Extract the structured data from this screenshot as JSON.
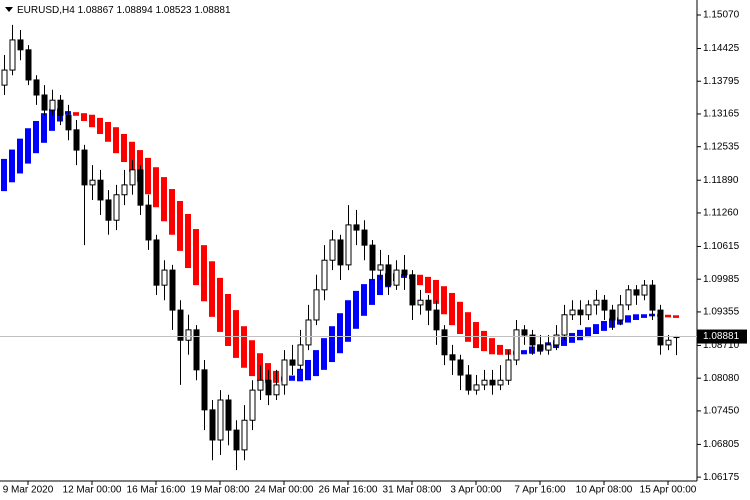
{
  "chart_data": {
    "type": "candlestick",
    "symbol": "EURUSD,H4",
    "ylim": [
      1.0612,
      1.1532
    ],
    "yticks": [
      {
        "value": 1.1507,
        "label": "1.15070"
      },
      1.14425,
      1.13795,
      1.13165,
      1.12535,
      {
        "value": 1.1189,
        "label": "1.11890"
      },
      {
        "value": 1.1126,
        "label": "1.11260"
      },
      1.10615,
      1.09985,
      1.09355,
      {
        "value": 1.0871,
        "label": "1.08710"
      },
      {
        "value": 1.0808,
        "label": "1.08080"
      },
      {
        "value": 1.0745,
        "label": "1.07450"
      },
      1.06805,
      1.06175
    ],
    "categories": [
      null,
      null,
      null,
      "9 Mar 2020",
      null,
      null,
      null,
      null,
      null,
      null,
      null,
      "12 Mar 00:00",
      null,
      null,
      null,
      null,
      null,
      null,
      null,
      "16 Mar 16:00",
      null,
      null,
      null,
      null,
      null,
      null,
      null,
      "19 Mar 08:00",
      null,
      null,
      null,
      null,
      null,
      null,
      null,
      "24 Mar 00:00",
      null,
      null,
      null,
      null,
      null,
      null,
      null,
      "26 Mar 16:00",
      null,
      null,
      null,
      null,
      null,
      null,
      null,
      "31 Mar 08:00",
      null,
      null,
      null,
      null,
      null,
      null,
      null,
      "3 Apr 00:00",
      null,
      null,
      null,
      null,
      null,
      null,
      null,
      "7 Apr 16:00",
      null,
      null,
      null,
      null,
      null,
      null,
      null,
      "10 Apr 08:00",
      null,
      null,
      null,
      null,
      null,
      null,
      null,
      "15 Apr 00:00",
      null
    ],
    "candles": [
      [
        1.1372,
        1.143,
        1.1353,
        1.1401
      ],
      [
        1.1401,
        1.1488,
        1.1391,
        1.1459
      ],
      [
        1.1459,
        1.1478,
        1.142,
        1.144
      ],
      [
        1.144,
        1.1449,
        1.1372,
        1.1382
      ],
      [
        1.1382,
        1.1391,
        1.1334,
        1.1353
      ],
      [
        1.1353,
        1.1372,
        1.1314,
        1.1324
      ],
      [
        1.1324,
        1.1363,
        1.1314,
        1.1343
      ],
      [
        1.1343,
        1.1353,
        1.1295,
        1.1314
      ],
      [
        1.1314,
        1.1334,
        1.1266,
        1.1286
      ],
      [
        1.1286,
        1.1305,
        1.1218,
        1.1247
      ],
      [
        1.1247,
        1.1257,
        1.1064,
        1.118
      ],
      [
        1.118,
        1.1218,
        1.1151,
        1.1189
      ],
      [
        1.1189,
        1.1209,
        1.1122,
        1.1151
      ],
      [
        1.1151,
        1.117,
        1.1084,
        1.1112
      ],
      [
        1.1112,
        1.118,
        1.1093,
        1.1161
      ],
      [
        1.1161,
        1.1209,
        1.1141,
        1.118
      ],
      [
        1.118,
        1.1228,
        1.1161,
        1.1209
      ],
      [
        1.1209,
        1.1218,
        1.1122,
        1.1141
      ],
      [
        1.1141,
        1.1161,
        1.1055,
        1.1074
      ],
      [
        1.1074,
        1.1084,
        1.0968,
        1.0987
      ],
      [
        1.0987,
        1.1035,
        1.0958,
        1.1016
      ],
      [
        1.1016,
        1.1026,
        1.0901,
        1.0939
      ],
      [
        1.0939,
        1.0958,
        1.0795,
        1.0881
      ],
      [
        1.0881,
        1.093,
        1.0853,
        1.0901
      ],
      [
        1.0901,
        1.091,
        1.0804,
        1.0824
      ],
      [
        1.0824,
        1.0843,
        1.0708,
        1.0747
      ],
      [
        1.0747,
        1.0766,
        1.065,
        1.0689
      ],
      [
        1.0689,
        1.0785,
        1.066,
        1.0766
      ],
      [
        1.0766,
        1.0776,
        1.0679,
        1.0708
      ],
      [
        1.0708,
        1.0727,
        1.0631,
        1.067
      ],
      [
        1.067,
        1.0756,
        1.065,
        1.0727
      ],
      [
        1.0727,
        1.0804,
        1.0708,
        1.0785
      ],
      [
        1.0785,
        1.0833,
        1.0766,
        1.0804
      ],
      [
        1.0804,
        1.0824,
        1.0756,
        1.0776
      ],
      [
        1.0776,
        1.0824,
        1.0766,
        1.0795
      ],
      [
        1.0795,
        1.0862,
        1.0776,
        1.0843
      ],
      [
        1.0843,
        1.0872,
        1.0814,
        1.0833
      ],
      [
        1.0833,
        1.0901,
        1.0824,
        1.0872
      ],
      [
        1.0872,
        1.0949,
        1.0862,
        1.092
      ],
      [
        1.092,
        1.1007,
        1.091,
        1.0978
      ],
      [
        1.0978,
        1.1064,
        1.0958,
        1.1035
      ],
      [
        1.1035,
        1.1093,
        1.1016,
        1.1074
      ],
      [
        1.1074,
        1.1084,
        1.0997,
        1.1026
      ],
      [
        1.1026,
        1.1141,
        1.1016,
        1.1103
      ],
      [
        1.1103,
        1.1132,
        1.1064,
        1.1093
      ],
      [
        1.1093,
        1.1112,
        1.1035,
        1.1064
      ],
      [
        1.1064,
        1.1074,
        1.0997,
        1.1016
      ],
      [
        1.1016,
        1.1055,
        1.0997,
        1.1026
      ],
      [
        1.1026,
        1.1045,
        1.0968,
        1.0987
      ],
      [
        1.0987,
        1.1035,
        1.0978,
        1.1016
      ],
      [
        1.1016,
        1.1045,
        1.0978,
        1.1007
      ],
      [
        1.1007,
        1.1016,
        1.092,
        1.0949
      ],
      [
        1.0949,
        1.0978,
        1.093,
        1.0958
      ],
      [
        1.0958,
        1.0968,
        1.091,
        1.0939
      ],
      [
        1.0939,
        1.0958,
        1.0872,
        1.0901
      ],
      [
        1.0901,
        1.091,
        1.0833,
        1.0853
      ],
      [
        1.0853,
        1.0872,
        1.0814,
        1.0843
      ],
      [
        1.0843,
        1.0853,
        1.0785,
        1.0814
      ],
      [
        1.0814,
        1.0833,
        1.0776,
        1.0785
      ],
      [
        1.0785,
        1.0814,
        1.0776,
        1.0795
      ],
      [
        1.0795,
        1.0824,
        1.0785,
        1.0804
      ],
      [
        1.0804,
        1.0824,
        1.0776,
        1.0795
      ],
      [
        1.0795,
        1.0833,
        1.0785,
        1.0804
      ],
      [
        1.0804,
        1.0862,
        1.0795,
        1.0843
      ],
      [
        1.0843,
        1.092,
        1.0833,
        1.0901
      ],
      [
        1.0901,
        1.091,
        1.0872,
        1.0891
      ],
      [
        1.0891,
        1.0901,
        1.0853,
        1.0872
      ],
      [
        1.0872,
        1.0891,
        1.0853,
        1.0862
      ],
      [
        1.0862,
        1.0891,
        1.0853,
        1.0872
      ],
      [
        1.0872,
        1.091,
        1.0862,
        1.0891
      ],
      [
        1.0891,
        1.0949,
        1.0881,
        1.093
      ],
      [
        1.093,
        1.0958,
        1.092,
        1.0939
      ],
      [
        1.0939,
        1.0958,
        1.091,
        1.093
      ],
      [
        1.093,
        1.0958,
        1.092,
        1.0949
      ],
      [
        1.0949,
        1.0978,
        1.093,
        1.0958
      ],
      [
        1.0958,
        1.0968,
        1.092,
        1.0939
      ],
      [
        1.0939,
        1.0949,
        1.0901,
        1.092
      ],
      [
        1.092,
        1.0968,
        1.091,
        1.0949
      ],
      [
        1.0949,
        1.0987,
        1.0939,
        1.0978
      ],
      [
        1.0978,
        1.0987,
        1.0949,
        1.0968
      ],
      [
        1.0968,
        1.0997,
        1.0958,
        1.0987
      ],
      [
        1.0987,
        1.0997,
        1.092,
        1.0939
      ],
      [
        1.0939,
        1.0949,
        1.0853,
        1.0872
      ],
      [
        1.0872,
        1.0891,
        1.0862,
        1.0881
      ],
      [
        1.08867,
        1.08894,
        1.08523,
        1.08881
      ]
    ],
    "candle_color": "#000000",
    "bull_fill": "#ffffff",
    "indicator": {
      "up_color": "#0000ff",
      "down_color": "#ff0000",
      "fast": [
        1.123,
        1.1248,
        1.1269,
        1.1289,
        1.1303,
        1.1318,
        1.1326,
        1.1327,
        1.1322,
        1.1313,
        1.1303,
        1.1291,
        1.1278,
        1.1263,
        1.1241,
        1.1224,
        1.1205,
        1.1186,
        1.1162,
        1.1137,
        1.111,
        1.1084,
        1.1053,
        1.102,
        1.0987,
        1.0956,
        1.0926,
        1.0897,
        1.087,
        1.0847,
        1.0828,
        1.0812,
        1.0802,
        1.0799,
        1.0799,
        1.0802,
        1.0813,
        1.0826,
        1.0843,
        1.0862,
        1.0885,
        1.0908,
        1.0933,
        1.0958,
        1.0976,
        1.0989,
        1.0999,
        1.1007,
        1.101,
        1.101,
        1.1008,
        1.0999,
        1.0987,
        1.0972,
        1.0951,
        1.0931,
        1.091,
        1.0893,
        1.0878,
        1.0866,
        1.086,
        1.0854,
        1.0853,
        1.0853,
        1.0853,
        1.0862,
        1.0869,
        1.0873,
        1.0877,
        1.0881,
        1.0889,
        1.0895,
        1.0901,
        1.0906,
        1.0912,
        1.0918,
        1.0923,
        1.0925,
        1.0929,
        1.0931,
        1.0931,
        1.0932,
        1.0926,
        1.0925,
        1.0924
      ],
      "slow": [
        1.1168,
        1.1185,
        1.1202,
        1.1221,
        1.1241,
        1.1261,
        1.1284,
        1.1302,
        1.1315,
        1.132,
        1.1318,
        1.1315,
        1.1309,
        1.1301,
        1.1291,
        1.1278,
        1.1263,
        1.1247,
        1.1232,
        1.1214,
        1.1195,
        1.1172,
        1.1149,
        1.1124,
        1.1095,
        1.1064,
        1.1033,
        1.1001,
        1.097,
        1.0939,
        1.0908,
        1.0881,
        1.0856,
        1.0837,
        1.0822,
        1.0811,
        1.0803,
        1.0802,
        1.0804,
        1.0812,
        1.0824,
        1.0839,
        1.0856,
        1.0878,
        1.0903,
        1.0928,
        1.0949,
        1.0968,
        1.0983,
        1.0995,
        1.1001,
        1.1007,
        1.1007,
        1.1003,
        1.0997,
        1.0985,
        1.0972,
        1.0955,
        1.0935,
        1.0916,
        1.0899,
        1.0885,
        1.0872,
        1.0864,
        1.086,
        1.0854,
        1.0855,
        1.0859,
        1.0863,
        1.0866,
        1.087,
        1.0876,
        1.0881,
        1.0887,
        1.0893,
        1.0899,
        1.0905,
        1.0911,
        1.0915,
        1.092,
        1.0924,
        1.0927,
        1.0931,
        1.093,
        1.0929
      ]
    },
    "price_line_color": "#c0c0c0"
  }
}
